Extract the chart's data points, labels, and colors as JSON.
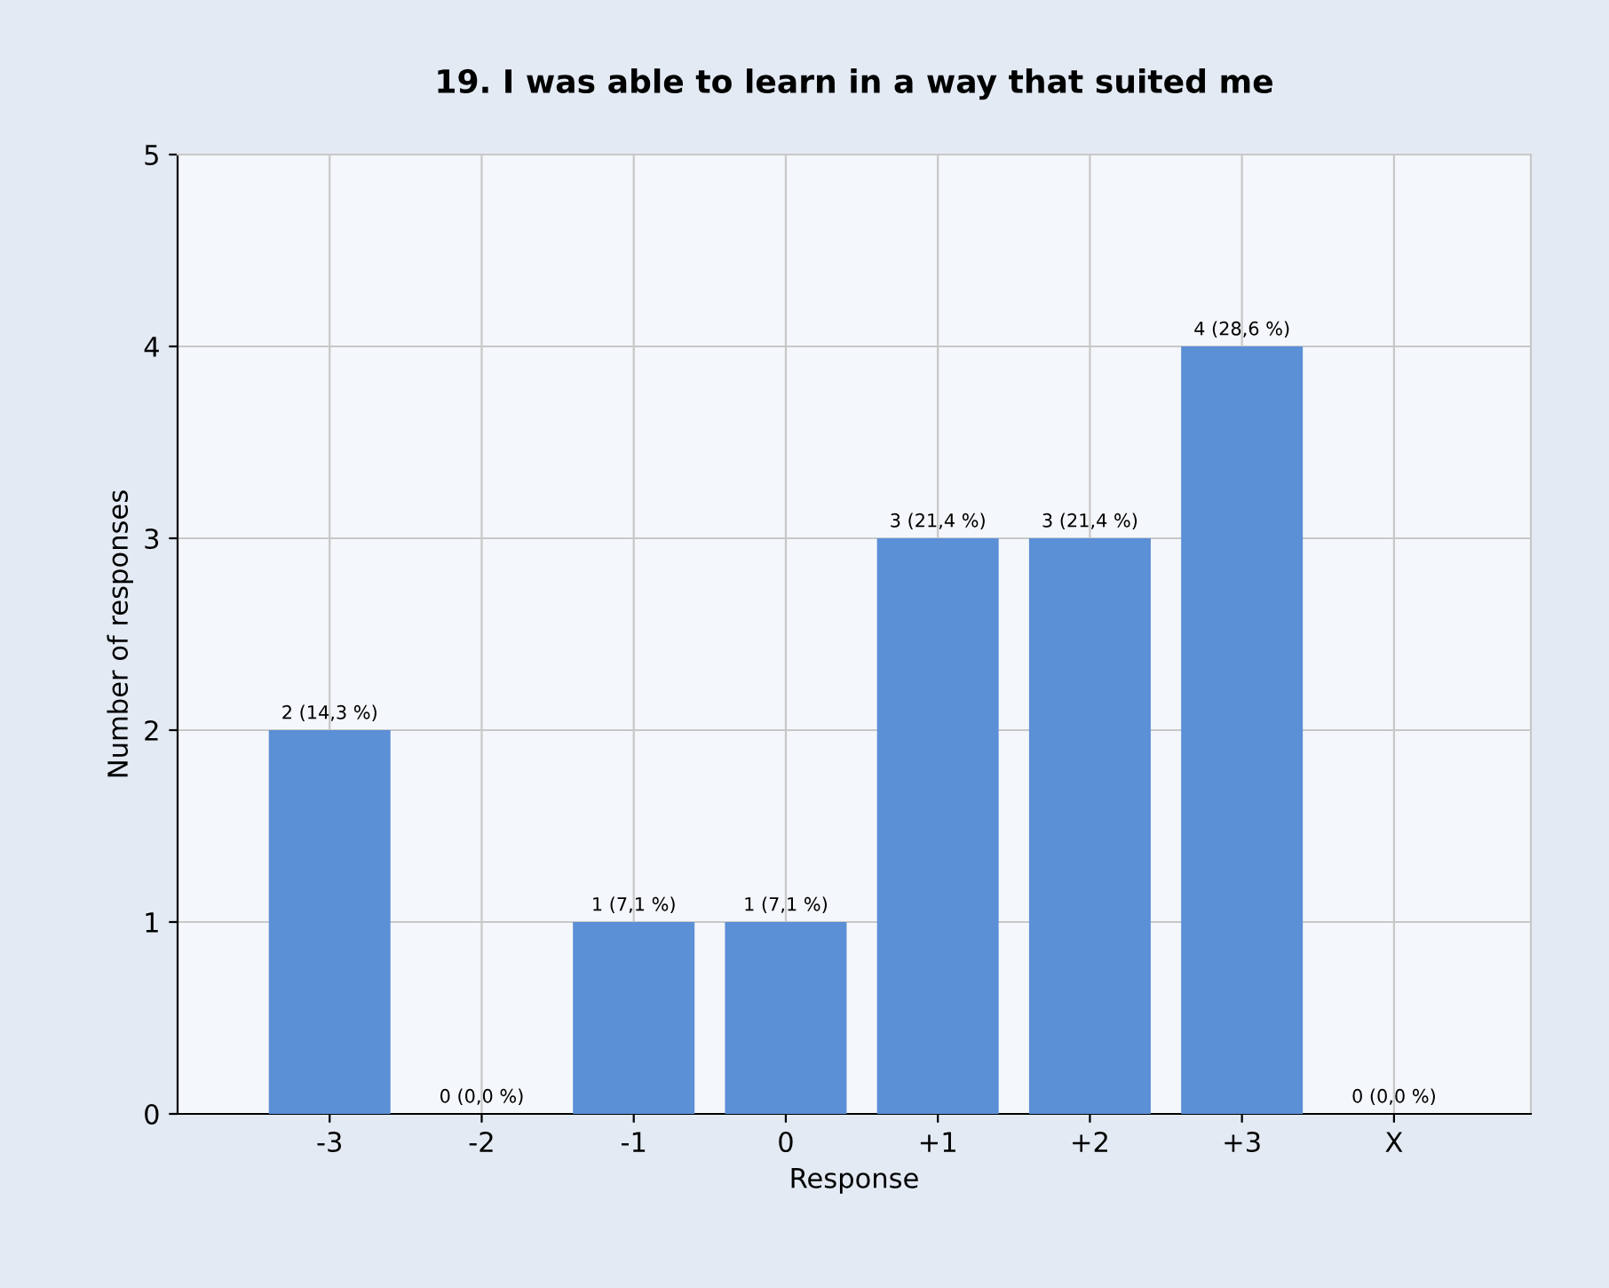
{
  "chart_data": {
    "type": "bar",
    "title": "19. I was able to learn in a way that suited me",
    "xlabel": "Response",
    "ylabel": "Number of responses",
    "categories": [
      "-3",
      "-2",
      "-1",
      "0",
      "+1",
      "+2",
      "+3",
      "X"
    ],
    "values": [
      2,
      0,
      1,
      1,
      3,
      3,
      4,
      0
    ],
    "value_labels": [
      "2 (14,3 %)",
      "0 (0,0 %)",
      "1 (7,1 %)",
      "1 (7,1 %)",
      "3 (21,4 %)",
      "3 (21,4 %)",
      "4 (28,6 %)",
      "0 (0,0 %)"
    ],
    "color": "#5b8fd6",
    "ylim": [
      0,
      5
    ],
    "yticks": [
      0,
      1,
      2,
      3,
      4,
      5
    ],
    "grid": true
  }
}
